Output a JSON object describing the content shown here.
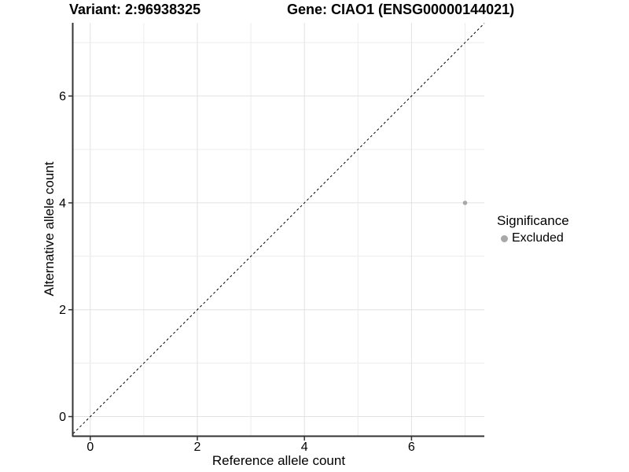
{
  "header": {
    "variant_title": "Variant: 2:96938325",
    "gene_title": "Gene: CIAO1 (ENSG00000144021)"
  },
  "chart_data": {
    "type": "scatter",
    "xlabel": "Reference allele count",
    "ylabel": "Alternative allele count",
    "xlim": [
      -0.32,
      7.36
    ],
    "ylim": [
      -0.36,
      7.37
    ],
    "xticks": [
      0,
      2,
      4,
      6
    ],
    "yticks": [
      0,
      2,
      4,
      6
    ],
    "grid_interval": 1,
    "grid_min": 0,
    "grid_max": 7,
    "points": [
      {
        "x": 7,
        "y": 4,
        "series": "Excluded"
      }
    ],
    "reference_line": {
      "type": "identity",
      "slope": 1,
      "intercept": 0,
      "style": "dashed"
    },
    "legend": {
      "title": "Significance",
      "position": "right",
      "items": [
        {
          "label": "Excluded",
          "color": "#a8a8a8"
        }
      ]
    },
    "colors": {
      "point": "#a8a8a8",
      "grid_major": "#e2e2e2",
      "grid_minor": "#ececec",
      "axis_line": "#333333",
      "tick_text": "#000000",
      "reference_line": "#000000"
    }
  }
}
